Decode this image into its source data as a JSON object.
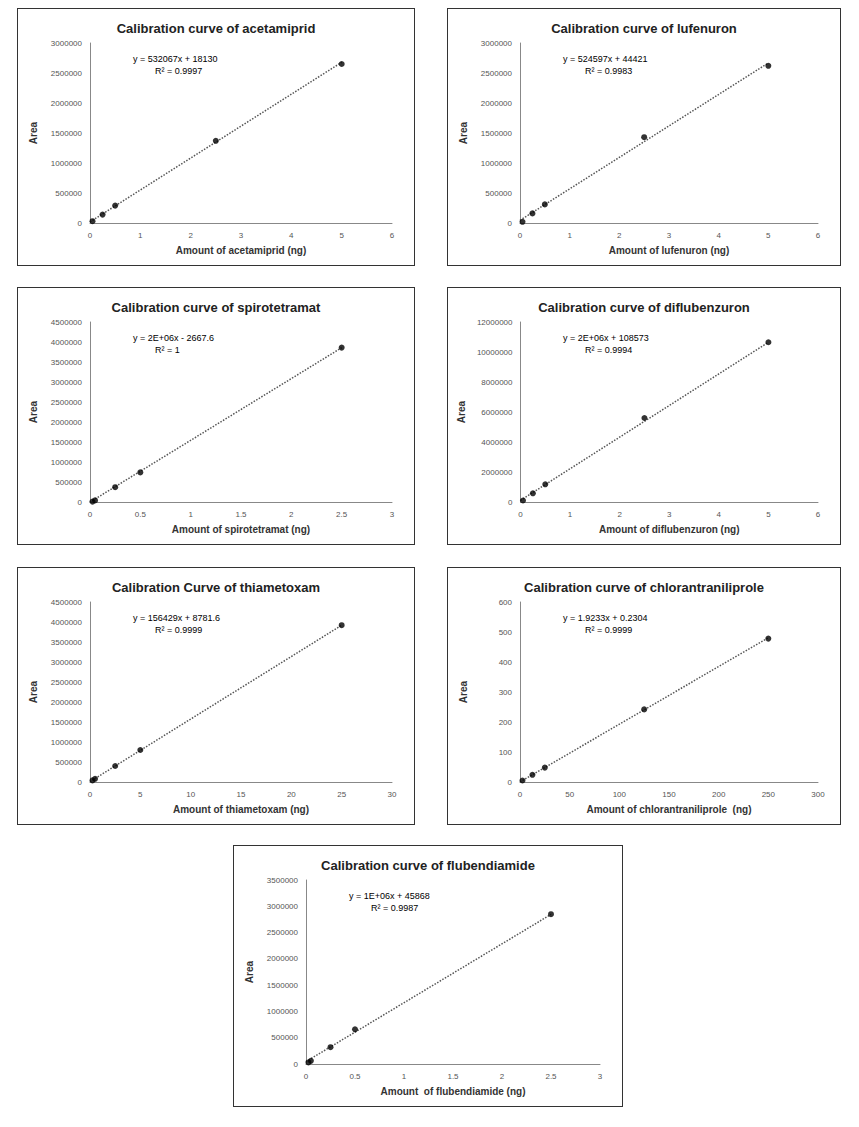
{
  "chart_data": [
    {
      "type": "scatter",
      "title": "Calibration curve of acetamiprid",
      "x_label": "Amount of acetamiprid (ng)",
      "y_label": "Area",
      "annotations": [
        "y = 532067x + 18130",
        "R² = 0.9997"
      ],
      "x": [
        0.05,
        0.25,
        0.5,
        2.5,
        5
      ],
      "values": [
        30000,
        140000,
        290000,
        1370000,
        2650000
      ],
      "trendline": {
        "slope": 532067,
        "intercept": 18130,
        "line_style": "dotted"
      },
      "xlim": [
        0,
        6
      ],
      "xticks": [
        0,
        1,
        2,
        3,
        4,
        5,
        6
      ],
      "ylim": [
        0,
        3000000
      ],
      "yticks": [
        0,
        500000,
        1000000,
        1500000,
        2000000,
        2500000,
        3000000
      ],
      "grid": false,
      "color": "#000000",
      "marker": "circle"
    },
    {
      "type": "scatter",
      "title": "Calibration curve of lufenuron",
      "x_label": "Amount of lufenuron (ng)",
      "y_label": "Area",
      "annotations": [
        "y = 524597x + 44421",
        "R² = 0.9983"
      ],
      "x": [
        0.05,
        0.25,
        0.5,
        2.5,
        5
      ],
      "values": [
        20000,
        160000,
        310000,
        1430000,
        2620000
      ],
      "trendline": {
        "slope": 524597,
        "intercept": 44421,
        "line_style": "dotted"
      },
      "xlim": [
        0,
        6
      ],
      "xticks": [
        0,
        1,
        2,
        3,
        4,
        5,
        6
      ],
      "ylim": [
        0,
        3000000
      ],
      "yticks": [
        0,
        500000,
        1000000,
        1500000,
        2000000,
        2500000,
        3000000
      ],
      "grid": false,
      "color": "#000000",
      "marker": "circle"
    },
    {
      "type": "scatter",
      "title": "Calibration curve of spirotetramat",
      "x_label": "Amount of spirotetramat (ng)",
      "y_label": "Area",
      "annotations": [
        "y = 2E+06x - 2667.6",
        "R² = 1"
      ],
      "x": [
        0.025,
        0.05,
        0.25,
        0.5,
        2.5
      ],
      "values": [
        10000,
        40000,
        370000,
        740000,
        3860000
      ],
      "trendline": {
        "slope": 1544000,
        "intercept": -2667.6,
        "line_style": "dotted"
      },
      "xlim": [
        0,
        3
      ],
      "xticks": [
        0,
        0.5,
        1,
        1.5,
        2,
        2.5,
        3
      ],
      "ylim": [
        0,
        4500000
      ],
      "yticks": [
        0,
        500000,
        1000000,
        1500000,
        2000000,
        2500000,
        3000000,
        3500000,
        4000000,
        4500000
      ],
      "grid": false,
      "color": "#000000",
      "marker": "circle"
    },
    {
      "type": "scatter",
      "title": "Calibration curve of diflubenzuron",
      "x_label": "Amount of diflubenzuron (ng)",
      "y_label": "Area",
      "annotations": [
        "y = 2E+06x + 108573",
        "R² = 0.9994"
      ],
      "x": [
        0.05,
        0.25,
        0.5,
        2.5,
        5
      ],
      "values": [
        100000,
        580000,
        1180000,
        5600000,
        10650000
      ],
      "trendline": {
        "slope": 2108000,
        "intercept": 108573,
        "line_style": "dotted"
      },
      "xlim": [
        0,
        6
      ],
      "xticks": [
        0,
        1,
        2,
        3,
        4,
        5,
        6
      ],
      "ylim": [
        0,
        12000000
      ],
      "yticks": [
        0,
        2000000,
        4000000,
        6000000,
        8000000,
        10000000,
        12000000
      ],
      "grid": false,
      "color": "#000000",
      "marker": "circle"
    },
    {
      "type": "scatter",
      "title": "Calibration Curve of thiametoxam",
      "x_label": "Amount of thiametoxam (ng)",
      "y_label": "Area",
      "annotations": [
        "y = 156429x + 8781.6",
        "R² = 0.9999"
      ],
      "x": [
        0.25,
        0.5,
        2.5,
        5,
        25
      ],
      "values": [
        40000,
        80000,
        400000,
        800000,
        3920000
      ],
      "trendline": {
        "slope": 156429,
        "intercept": 8781.6,
        "line_style": "dotted"
      },
      "xlim": [
        0,
        30
      ],
      "xticks": [
        0,
        5,
        10,
        15,
        20,
        25,
        30
      ],
      "ylim": [
        0,
        4500000
      ],
      "yticks": [
        0,
        500000,
        1000000,
        1500000,
        2000000,
        2500000,
        3000000,
        3500000,
        4000000,
        4500000
      ],
      "grid": false,
      "color": "#000000",
      "marker": "circle"
    },
    {
      "type": "scatter",
      "title": "Calibration curve of chlorantraniliprole",
      "x_label": "Amount of chlorantraniliprole  (ng)",
      "y_label": "Area",
      "annotations": [
        "y = 1.9233x + 0.2304",
        "R² = 0.9999"
      ],
      "x": [
        2.5,
        12.5,
        25,
        125,
        250
      ],
      "values": [
        5,
        24,
        48,
        242,
        478
      ],
      "trendline": {
        "slope": 1.9233,
        "intercept": 0.2304,
        "line_style": "dotted"
      },
      "xlim": [
        0,
        300
      ],
      "xticks": [
        0,
        50,
        100,
        150,
        200,
        250,
        300
      ],
      "ylim": [
        0,
        600
      ],
      "yticks": [
        0,
        100,
        200,
        300,
        400,
        500,
        600
      ],
      "grid": false,
      "color": "#000000",
      "marker": "circle"
    },
    {
      "type": "scatter",
      "title": "Calibration curve of flubendiamide",
      "x_label": "Amount  of flubendiamide (ng)",
      "y_label": "Area",
      "annotations": [
        "y = 1E+06x + 45868",
        "R² = 0.9987"
      ],
      "x": [
        0.025,
        0.05,
        0.25,
        0.5,
        2.5
      ],
      "values": [
        30000,
        60000,
        320000,
        660000,
        2850000
      ],
      "trendline": {
        "slope": 1120000,
        "intercept": 45868,
        "line_style": "dotted"
      },
      "xlim": [
        0,
        3
      ],
      "xticks": [
        0,
        0.5,
        1,
        1.5,
        2,
        2.5,
        3
      ],
      "ylim": [
        0,
        3500000
      ],
      "yticks": [
        0,
        500000,
        1000000,
        1500000,
        2000000,
        2500000,
        3000000,
        3500000
      ],
      "grid": false,
      "color": "#000000",
      "marker": "circle"
    }
  ]
}
